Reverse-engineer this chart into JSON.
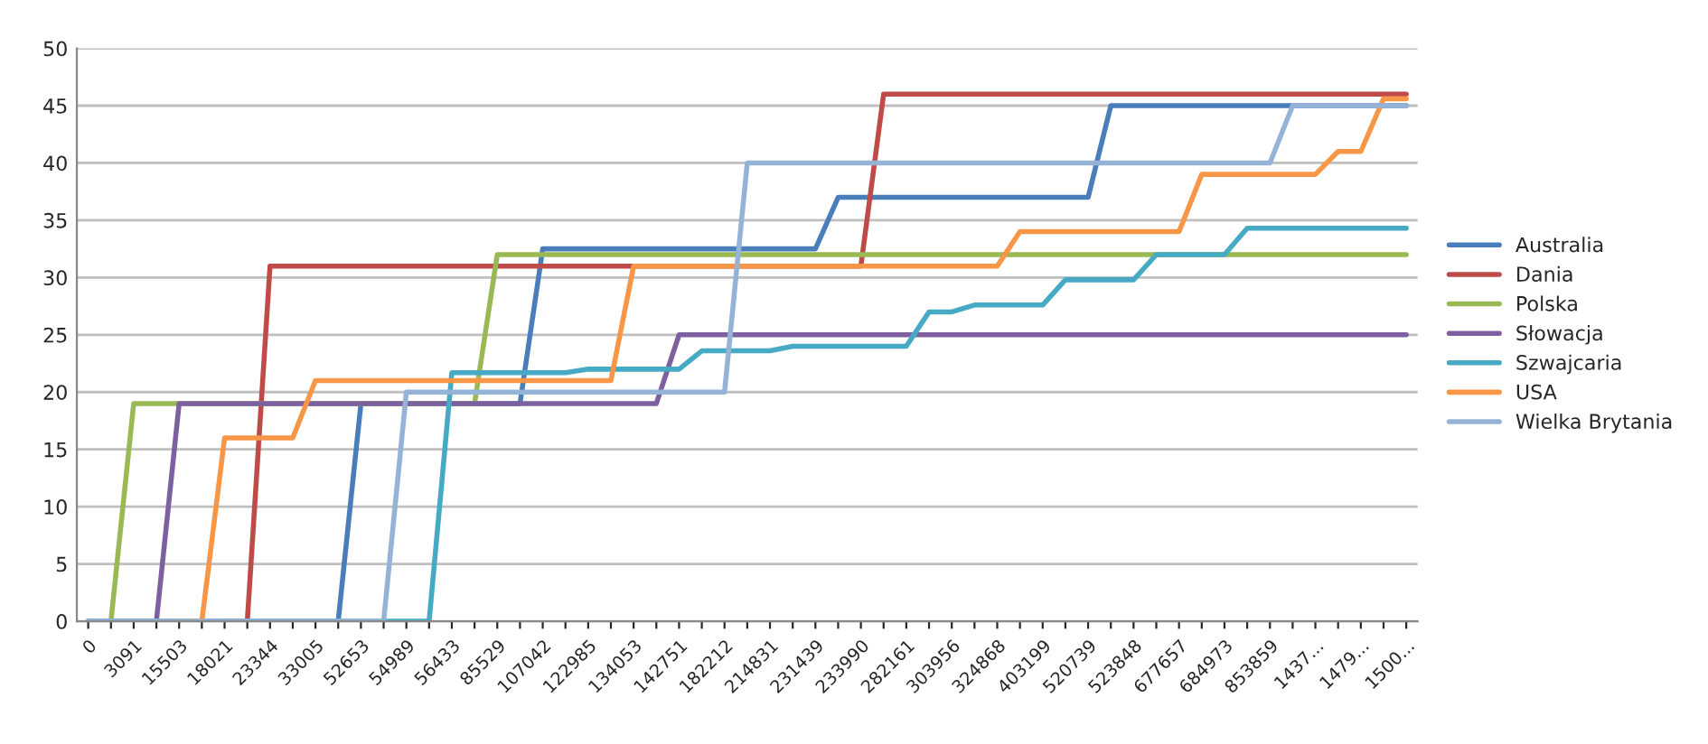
{
  "chart_data": {
    "type": "line",
    "categories": [
      "0",
      null,
      "3091",
      null,
      "15503",
      null,
      "18021",
      null,
      "23344",
      null,
      "33005",
      null,
      "52653",
      null,
      "54989",
      null,
      "56433",
      null,
      "85529",
      null,
      "107042",
      null,
      "122985",
      null,
      "134053",
      null,
      "142751",
      null,
      "182212",
      null,
      "214831",
      null,
      "231439",
      null,
      "233990",
      null,
      "282161",
      null,
      "303956",
      null,
      "324868",
      null,
      "403199",
      null,
      "520739",
      null,
      "523848",
      null,
      "677657",
      null,
      "684973",
      null,
      "853859",
      null,
      "1437...",
      null,
      "1479...",
      null,
      "1500..."
    ],
    "series": [
      {
        "name": "Australia",
        "color": "#4a7ebb",
        "values": [
          0,
          0,
          0,
          0,
          0,
          0,
          0,
          0,
          0,
          0,
          0,
          0,
          19,
          19,
          19,
          19,
          19,
          19,
          19,
          19,
          32.5,
          32.5,
          32.5,
          32.5,
          32.5,
          32.5,
          32.5,
          32.5,
          32.5,
          32.5,
          32.5,
          32.5,
          32.5,
          37,
          37,
          37,
          37,
          37,
          37,
          37,
          37,
          37,
          37,
          37,
          37,
          45,
          45,
          45,
          45,
          45,
          45,
          45,
          45,
          45,
          45,
          45,
          45,
          45,
          45
        ]
      },
      {
        "name": "Dania",
        "color": "#be4b48",
        "values": [
          null,
          null,
          null,
          null,
          null,
          null,
          0,
          0,
          31,
          31,
          31,
          31,
          31,
          31,
          31,
          31,
          31,
          31,
          31,
          31,
          31,
          31,
          31,
          31,
          31,
          31,
          31,
          31,
          31,
          31,
          31,
          31,
          31,
          31,
          31,
          46,
          46,
          46,
          46,
          46,
          46,
          46,
          46,
          46,
          46,
          46,
          46,
          46,
          46,
          46,
          46,
          46,
          46,
          46,
          46,
          46,
          46,
          46,
          46
        ]
      },
      {
        "name": "Polska",
        "color": "#98b954",
        "values": [
          0,
          0,
          19,
          19,
          19,
          19,
          19,
          19,
          19,
          19,
          19,
          19,
          19,
          19,
          19,
          19,
          19,
          19,
          32,
          32,
          32,
          32,
          32,
          32,
          32,
          32,
          32,
          32,
          32,
          32,
          32,
          32,
          32,
          32,
          32,
          32,
          32,
          32,
          32,
          32,
          32,
          32,
          32,
          32,
          32,
          32,
          32,
          32,
          32,
          32,
          32,
          32,
          32,
          32,
          32,
          32,
          32,
          32,
          32
        ]
      },
      {
        "name": "Słowacja",
        "color": "#7d60a0",
        "values": [
          0,
          0,
          0,
          0,
          19,
          19,
          19,
          19,
          19,
          19,
          19,
          19,
          19,
          19,
          19,
          19,
          19,
          19,
          19,
          19,
          19,
          19,
          19,
          19,
          19,
          19,
          25,
          25,
          25,
          25,
          25,
          25,
          25,
          25,
          25,
          25,
          25,
          25,
          25,
          25,
          25,
          25,
          25,
          25,
          25,
          25,
          25,
          25,
          25,
          25,
          25,
          25,
          25,
          25,
          25,
          25,
          25,
          25,
          25
        ]
      },
      {
        "name": "Szwajcaria",
        "color": "#46aac5",
        "values": [
          0,
          0,
          0,
          0,
          0,
          0,
          0,
          0,
          0,
          0,
          0,
          0,
          0,
          0,
          0,
          0,
          21.7,
          21.7,
          21.7,
          21.7,
          21.7,
          21.7,
          22,
          22,
          22,
          22,
          22,
          23.6,
          23.6,
          23.6,
          23.6,
          24,
          24,
          24,
          24,
          24,
          24,
          27,
          27,
          27.6,
          27.6,
          27.6,
          27.6,
          29.8,
          29.8,
          29.8,
          29.8,
          32,
          32,
          32,
          32,
          34.3,
          34.3,
          34.3,
          34.3,
          34.3,
          34.3,
          34.3,
          34.3
        ]
      },
      {
        "name": "USA",
        "color": "#f79646",
        "values": [
          null,
          null,
          null,
          null,
          0,
          0,
          16,
          16,
          16,
          16,
          21,
          21,
          21,
          21,
          21,
          21,
          21,
          21,
          21,
          21,
          21,
          21,
          21,
          21,
          31,
          31,
          31,
          31,
          31,
          31,
          31,
          31,
          31,
          31,
          31,
          31,
          31,
          31,
          31,
          31,
          31,
          34,
          34,
          34,
          34,
          34,
          34,
          34,
          34,
          39,
          39,
          39,
          39,
          39,
          39,
          41,
          41,
          45.6,
          45.6
        ]
      },
      {
        "name": "Wielka Brytania",
        "color": "#95b3d7",
        "values": [
          0,
          0,
          0,
          0,
          0,
          0,
          0,
          0,
          0,
          0,
          0,
          0,
          0,
          0,
          20,
          20,
          20,
          20,
          20,
          20,
          20,
          20,
          20,
          20,
          20,
          20,
          20,
          20,
          20,
          40,
          40,
          40,
          40,
          40,
          40,
          40,
          40,
          40,
          40,
          40,
          40,
          40,
          40,
          40,
          40,
          40,
          40,
          40,
          40,
          40,
          40,
          40,
          40,
          45,
          45,
          45,
          45,
          45,
          45
        ]
      }
    ],
    "ylim": [
      0,
      50
    ],
    "yticks": [
      0,
      5,
      10,
      15,
      20,
      25,
      30,
      35,
      40,
      45,
      50
    ],
    "grid": "y",
    "legend": "right",
    "marker": "none",
    "line_style": "solid"
  }
}
